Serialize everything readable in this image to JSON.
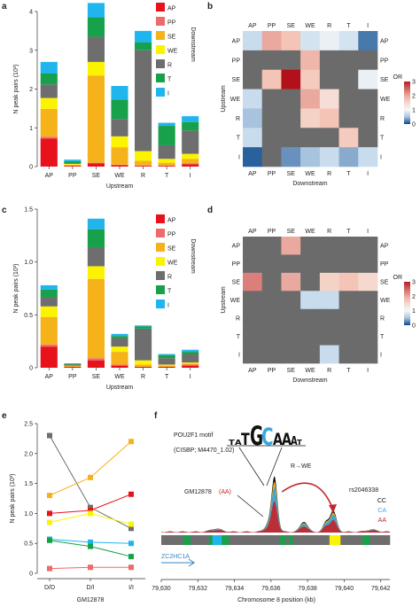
{
  "panels": [
    "a",
    "b",
    "c",
    "d",
    "e",
    "f"
  ],
  "seg_colors": {
    "AP": "#e8121c",
    "PP": "#ef6a6a",
    "SE": "#f5b21b",
    "WE": "#fbf300",
    "R": "#6e6e6e",
    "T": "#16a14a",
    "I": "#21b5ee"
  },
  "chart_data": [
    {
      "id": "a",
      "type": "stacked_bar",
      "ylabel": "N peak pairs (10³)",
      "xlabel": "Upstream",
      "legend_title": "Downstream",
      "legend": [
        "AP",
        "PP",
        "SE",
        "WE",
        "R",
        "T",
        "I"
      ],
      "ylim": [
        0,
        4
      ],
      "yticks": [
        0,
        1,
        2,
        3,
        4
      ],
      "categories": [
        "AP",
        "PP",
        "SE",
        "WE",
        "R",
        "T",
        "I"
      ],
      "series": [
        {
          "name": "AP",
          "values": [
            0.72,
            0.02,
            0.08,
            0.04,
            0.02,
            0.02,
            0.06
          ]
        },
        {
          "name": "PP",
          "values": [
            0.05,
            0.01,
            0.02,
            0.01,
            0.01,
            0.01,
            0.02
          ]
        },
        {
          "name": "SE",
          "values": [
            0.72,
            0.02,
            2.25,
            0.45,
            0.12,
            0.07,
            0.12
          ]
        },
        {
          "name": "WE",
          "values": [
            0.28,
            0.02,
            0.35,
            0.28,
            0.25,
            0.1,
            0.13
          ]
        },
        {
          "name": "R",
          "values": [
            0.35,
            0.02,
            0.65,
            0.45,
            2.6,
            0.35,
            0.6
          ]
        },
        {
          "name": "T",
          "values": [
            0.28,
            0.05,
            0.5,
            0.5,
            0.2,
            0.5,
            0.22
          ]
        },
        {
          "name": "I",
          "values": [
            0.3,
            0.04,
            0.37,
            0.35,
            0.3,
            0.08,
            0.15
          ]
        }
      ]
    },
    {
      "id": "b",
      "type": "heatmap",
      "rows": [
        "AP",
        "PP",
        "SE",
        "WE",
        "R",
        "T",
        "I"
      ],
      "cols": [
        "AP",
        "PP",
        "SE",
        "WE",
        "R",
        "T",
        "I"
      ],
      "row_label": "Upstream",
      "col_label": "Downstream",
      "scale_label": "OR",
      "scale_ticks": [
        0,
        1,
        2,
        3
      ],
      "values": [
        [
          0.6,
          2.0,
          1.8,
          0.7,
          0.9,
          0.7,
          0.2
        ],
        [
          null,
          null,
          null,
          1.9,
          null,
          null,
          null
        ],
        [
          null,
          1.8,
          3.1,
          1.7,
          null,
          null,
          0.9
        ],
        [
          0.6,
          null,
          null,
          2.0,
          1.4,
          null,
          null
        ],
        [
          0.5,
          null,
          null,
          1.6,
          1.8,
          null,
          null
        ],
        [
          0.6,
          null,
          null,
          null,
          null,
          1.7,
          null
        ],
        [
          0.1,
          null,
          0.3,
          0.5,
          0.6,
          0.4,
          0.6
        ]
      ]
    },
    {
      "id": "c",
      "type": "stacked_bar",
      "ylabel": "N peak pairs (10³)",
      "xlabel": "Upstream",
      "legend_title": "Downstream",
      "legend": [
        "AP",
        "PP",
        "SE",
        "WE",
        "R",
        "T",
        "I"
      ],
      "ylim": [
        0,
        1.5
      ],
      "yticks": [
        0,
        0.5,
        1.0,
        1.5
      ],
      "ytick_labels": [
        "0",
        "0.5",
        "1.0",
        "1.5"
      ],
      "categories": [
        "AP",
        "PP",
        "SE",
        "WE",
        "R",
        "T",
        "I"
      ],
      "series": [
        {
          "name": "AP",
          "values": [
            0.2,
            0.01,
            0.07,
            0.02,
            0.01,
            0.01,
            0.02
          ]
        },
        {
          "name": "PP",
          "values": [
            0.02,
            0.0,
            0.02,
            0.01,
            0.0,
            0.0,
            0.01
          ]
        },
        {
          "name": "SE",
          "values": [
            0.26,
            0.01,
            0.75,
            0.12,
            0.02,
            0.01,
            0.01
          ]
        },
        {
          "name": "WE",
          "values": [
            0.1,
            0.0,
            0.12,
            0.05,
            0.04,
            0.01,
            0.01
          ]
        },
        {
          "name": "R",
          "values": [
            0.09,
            0.01,
            0.18,
            0.08,
            0.3,
            0.06,
            0.08
          ]
        },
        {
          "name": "T",
          "values": [
            0.07,
            0.01,
            0.17,
            0.02,
            0.02,
            0.03,
            0.02
          ]
        },
        {
          "name": "I",
          "values": [
            0.04,
            0.0,
            0.1,
            0.02,
            0.01,
            0.01,
            0.02
          ]
        }
      ]
    },
    {
      "id": "d",
      "type": "heatmap",
      "rows": [
        "AP",
        "PP",
        "SE",
        "WE",
        "R",
        "T",
        "I"
      ],
      "cols": [
        "AP",
        "PP",
        "SE",
        "WE",
        "R",
        "T",
        "I"
      ],
      "row_label": "Upstream",
      "col_label": "Downstream",
      "scale_label": "OR",
      "scale_ticks": [
        0,
        1,
        2,
        3
      ],
      "values": [
        [
          null,
          null,
          2.0,
          null,
          null,
          null,
          null
        ],
        [
          null,
          null,
          null,
          null,
          null,
          null,
          null
        ],
        [
          2.3,
          null,
          2.0,
          null,
          1.6,
          1.8,
          1.5
        ],
        [
          null,
          null,
          null,
          0.6,
          0.6,
          null,
          null
        ],
        [
          null,
          null,
          null,
          null,
          null,
          null,
          null
        ],
        [
          null,
          null,
          null,
          null,
          null,
          null,
          null
        ],
        [
          null,
          null,
          null,
          null,
          0.6,
          null,
          null
        ]
      ]
    },
    {
      "id": "e",
      "type": "line",
      "ylabel": "N peak pairs (10³)",
      "xlabel": "GM12878",
      "categories": [
        "D/D",
        "D/I",
        "I/I"
      ],
      "ylim": [
        0,
        2.5
      ],
      "yticks": [
        0,
        0.5,
        1.0,
        1.5,
        2.0,
        2.5
      ],
      "ytick_labels": [
        "0",
        "0.5",
        "1.0",
        "1.5",
        "2.0",
        "2.5"
      ],
      "series": [
        {
          "color": "#6e6e6e",
          "values": [
            2.3,
            1.1,
            0.75
          ]
        },
        {
          "color": "#f5b21b",
          "values": [
            1.3,
            1.6,
            2.2
          ]
        },
        {
          "color": "#e8121c",
          "values": [
            1.0,
            1.05,
            1.32
          ]
        },
        {
          "color": "#fbf300",
          "values": [
            0.85,
            1.0,
            0.82
          ]
        },
        {
          "color": "#21b5ee",
          "values": [
            0.57,
            0.52,
            0.5
          ]
        },
        {
          "color": "#16a14a",
          "values": [
            0.55,
            0.45,
            0.28
          ]
        },
        {
          "color": "#ef6a6a",
          "values": [
            0.08,
            0.1,
            0.1
          ]
        }
      ]
    },
    {
      "id": "f",
      "type": "area",
      "xlabel": "Chromosome 8 position (kb)",
      "xlim": [
        79630,
        79642.5
      ],
      "xticks": [
        79630,
        79632,
        79634,
        79636,
        79638,
        79640,
        79642
      ],
      "xtick_labels": [
        "79,630",
        "79,632",
        "79,634",
        "79,636",
        "79,638",
        "79,640",
        "79,642"
      ],
      "motif_sequence": [
        "T",
        "A",
        "T",
        "G",
        "C",
        "A",
        "A",
        "A",
        "T"
      ],
      "motif_label_line1": "POU2F1 motif",
      "motif_label_line2": "(CISBP; M4470_1.02)",
      "annotation_arrow": "R→WE",
      "cell_line_label": "GM12878",
      "cell_line_genotype": "(AA)",
      "snp_id": "rs2046338",
      "genotypes": [
        {
          "name": "CC",
          "color": "#111111"
        },
        {
          "name": "CA",
          "color": "#3aa7e0"
        },
        {
          "name": "AA",
          "color": "#c2272d"
        }
      ],
      "gene_label": "ZC2HC1A",
      "state_track": [
        {
          "start": 79630.0,
          "end": 79631.2,
          "state": "R"
        },
        {
          "start": 79631.2,
          "end": 79631.6,
          "state": "T"
        },
        {
          "start": 79631.6,
          "end": 79632.6,
          "state": "R"
        },
        {
          "start": 79632.6,
          "end": 79632.8,
          "state": "T"
        },
        {
          "start": 79632.8,
          "end": 79633.3,
          "state": "I"
        },
        {
          "start": 79633.3,
          "end": 79633.7,
          "state": "T"
        },
        {
          "start": 79633.7,
          "end": 79636.5,
          "state": "R"
        },
        {
          "start": 79636.5,
          "end": 79636.8,
          "state": "T"
        },
        {
          "start": 79636.8,
          "end": 79637.0,
          "state": "R"
        },
        {
          "start": 79637.0,
          "end": 79637.2,
          "state": "T"
        },
        {
          "start": 79637.2,
          "end": 79639.2,
          "state": "R"
        },
        {
          "start": 79639.2,
          "end": 79639.8,
          "state": "WE"
        },
        {
          "start": 79639.8,
          "end": 79641.0,
          "state": "R"
        },
        {
          "start": 79641.0,
          "end": 79641.4,
          "state": "T"
        },
        {
          "start": 79641.4,
          "end": 79642.5,
          "state": "R"
        }
      ],
      "signal_peaks": [
        {
          "center": 79636.2,
          "width": 0.15,
          "height": 1.0
        },
        {
          "center": 79636.0,
          "width": 0.25,
          "height": 0.25
        },
        {
          "center": 79637.8,
          "width": 0.2,
          "height": 0.22
        },
        {
          "center": 79639.4,
          "width": 0.18,
          "height": 0.45
        },
        {
          "center": 79639.0,
          "width": 0.15,
          "height": 0.2
        },
        {
          "center": 79633.0,
          "width": 0.3,
          "height": 0.07
        },
        {
          "center": 79641.5,
          "width": 0.3,
          "height": 0.05
        }
      ]
    }
  ]
}
